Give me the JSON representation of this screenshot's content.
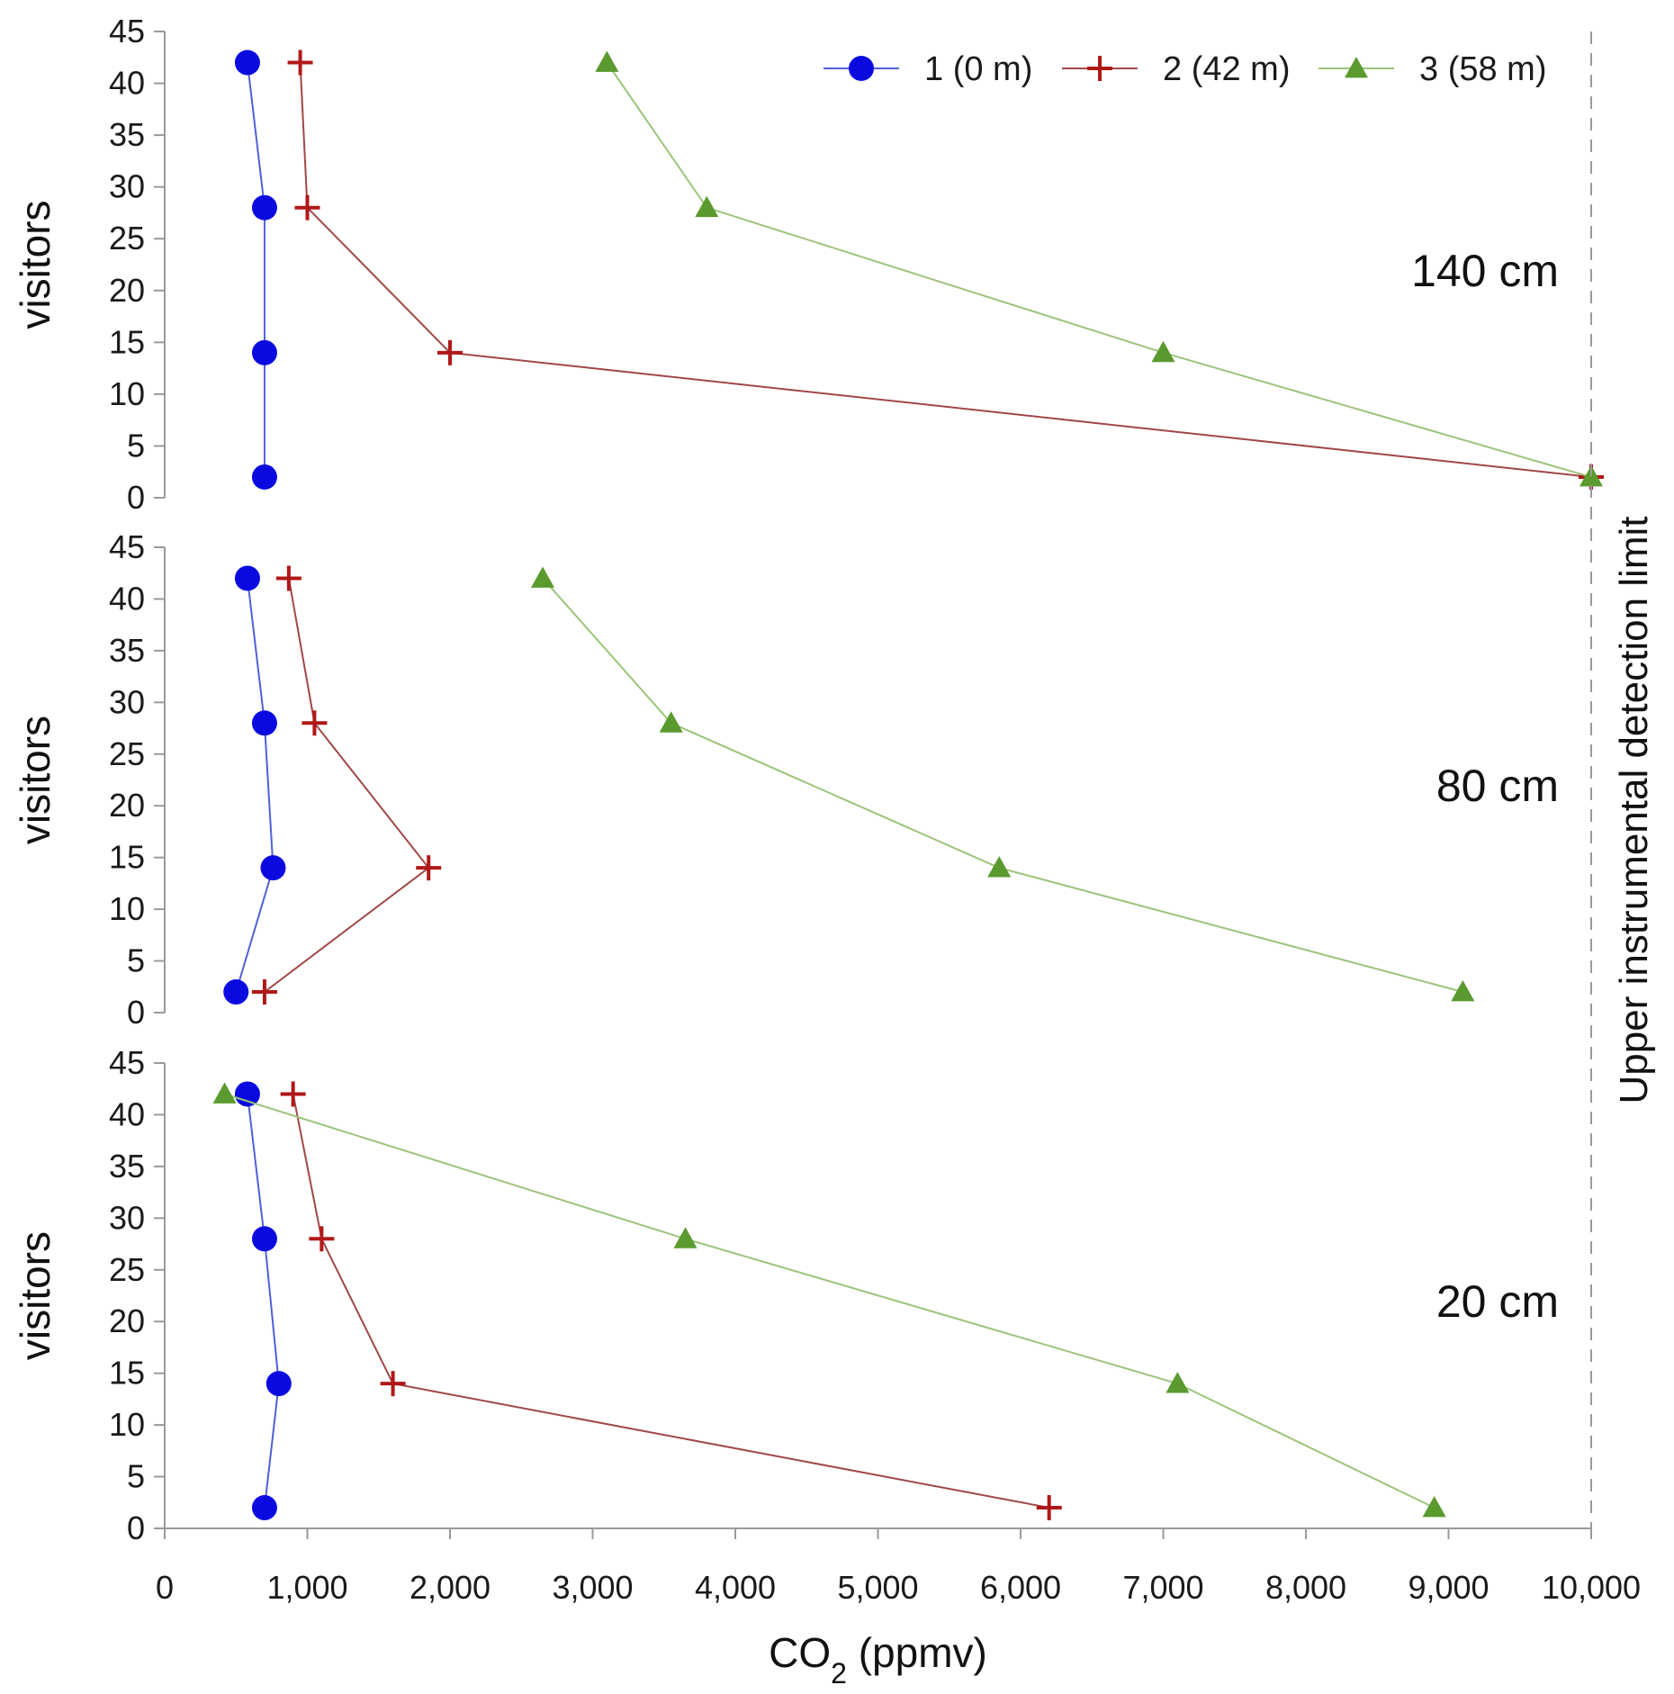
{
  "chart_data": {
    "type": "line",
    "xlabel_main": "CO",
    "xlabel_sub": "2",
    "xlabel_unit": " (ppmv)",
    "ylabel": "visitors",
    "xlim": [
      0,
      10000
    ],
    "ylim": [
      0,
      45
    ],
    "x_ticks": [
      "0",
      "1,000",
      "2,000",
      "3,000",
      "4,000",
      "5,000",
      "6,000",
      "7,000",
      "8,000",
      "9,000",
      "10,000"
    ],
    "x_tick_values": [
      0,
      1000,
      2000,
      3000,
      4000,
      5000,
      6000,
      7000,
      8000,
      9000,
      10000
    ],
    "y_ticks": [
      "0",
      "5",
      "10",
      "15",
      "20",
      "25",
      "30",
      "35",
      "40",
      "45"
    ],
    "y_tick_values": [
      0,
      5,
      10,
      15,
      20,
      25,
      30,
      35,
      40,
      45
    ],
    "limit_value": 10000,
    "limit_label": "Upper instrumental detection limit",
    "legend": [
      {
        "label": "1 (0 m)",
        "color": "#0a0ae0",
        "line_color": "#5060d8",
        "marker": "circle"
      },
      {
        "label": "2 (42 m)",
        "color": "#b01818",
        "line_color": "#a04848",
        "marker": "plus"
      },
      {
        "label": "3 (58 m)",
        "color": "#5a9a2e",
        "line_color": "#9cc47a",
        "marker": "triangle"
      }
    ],
    "panels": [
      {
        "label": "140 cm",
        "series": [
          {
            "name": "1 (0 m)",
            "x": [
              700,
              700,
              700,
              580
            ],
            "y": [
              2,
              14,
              28,
              42
            ]
          },
          {
            "name": "2 (42 m)",
            "x": [
              10000,
              2000,
              1000,
              950
            ],
            "y": [
              2,
              14,
              28,
              42
            ]
          },
          {
            "name": "3 (58 m)",
            "x": [
              10000,
              7000,
              3800,
              3100
            ],
            "y": [
              2,
              14,
              28,
              42
            ]
          }
        ]
      },
      {
        "label": "80 cm",
        "series": [
          {
            "name": "1 (0 m)",
            "x": [
              500,
              760,
              700,
              580
            ],
            "y": [
              2,
              14,
              28,
              42
            ]
          },
          {
            "name": "2 (42 m)",
            "x": [
              700,
              1850,
              1050,
              870
            ],
            "y": [
              2,
              14,
              28,
              42
            ]
          },
          {
            "name": "3 (58 m)",
            "x": [
              9100,
              5850,
              3550,
              2650
            ],
            "y": [
              2,
              14,
              28,
              42
            ]
          }
        ]
      },
      {
        "label": "20 cm",
        "series": [
          {
            "name": "1 (0 m)",
            "x": [
              700,
              800,
              700,
              580
            ],
            "y": [
              2,
              14,
              28,
              42
            ]
          },
          {
            "name": "2 (42 m)",
            "x": [
              6200,
              1600,
              1100,
              900
            ],
            "y": [
              2,
              14,
              28,
              42
            ]
          },
          {
            "name": "3 (58 m)",
            "x": [
              8900,
              7100,
              3650,
              420
            ],
            "y": [
              2,
              14,
              28,
              42
            ]
          }
        ]
      }
    ]
  }
}
